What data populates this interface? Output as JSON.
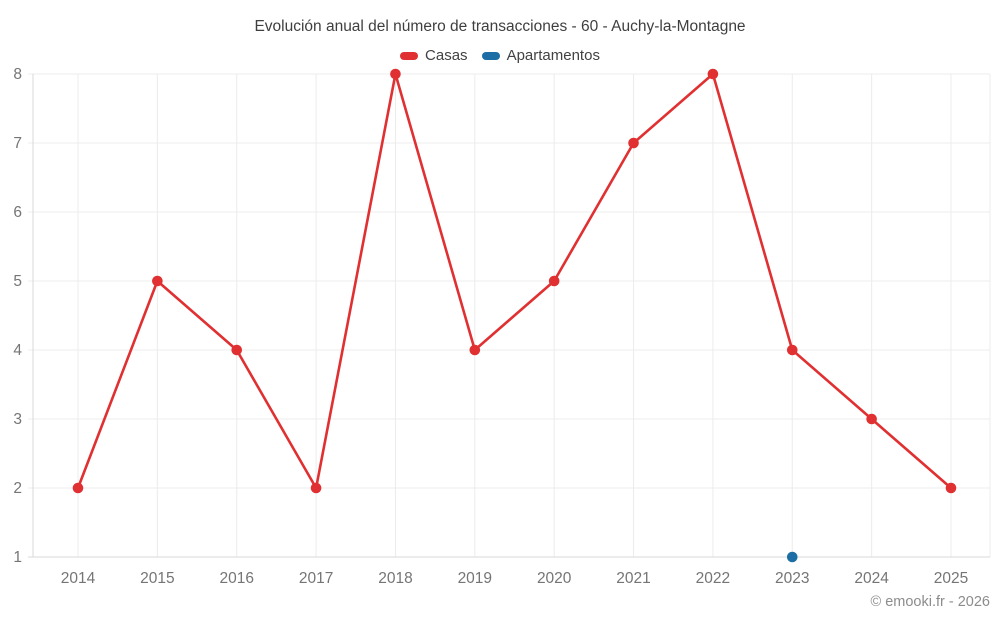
{
  "title": "Evolución anual del número de transacciones - 60 - Auchy-la-Montagne",
  "legend": [
    {
      "label": "Casas",
      "color": "#e03031"
    },
    {
      "label": "Apartamentos",
      "color": "#1c6ea4"
    }
  ],
  "chart_data": {
    "type": "line",
    "title": "Evolución anual del número de transacciones - 60 - Auchy-la-Montagne",
    "categories": [
      "2014",
      "2015",
      "2016",
      "2017",
      "2018",
      "2019",
      "2020",
      "2021",
      "2022",
      "2023",
      "2024",
      "2025"
    ],
    "series": [
      {
        "name": "Casas",
        "color": "#e03031",
        "values": [
          2,
          5,
          4,
          2,
          8,
          4,
          5,
          7,
          8,
          4,
          3,
          2
        ]
      },
      {
        "name": "Apartamentos",
        "color": "#1c6ea4",
        "values": [
          null,
          null,
          null,
          null,
          null,
          null,
          null,
          null,
          null,
          1,
          null,
          null
        ]
      }
    ],
    "xlabel": "",
    "ylabel": "",
    "ylim": [
      1,
      8
    ],
    "yticks": [
      1,
      2,
      3,
      4,
      5,
      6,
      7,
      8
    ],
    "grid": true,
    "legend_position": "top"
  },
  "colors": {
    "grid": "#ececec",
    "axis": "#d9d9d9",
    "tick_label": "#757575"
  },
  "footer": {
    "copyright": "© emooki.fr - 2026"
  }
}
